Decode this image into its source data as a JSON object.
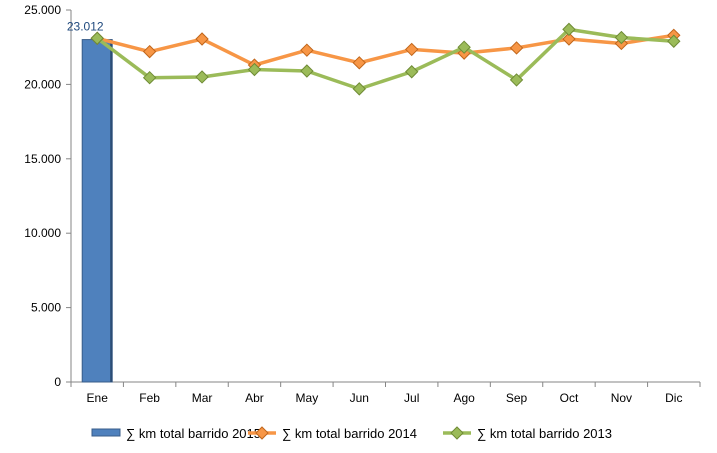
{
  "chart_data": {
    "type": "bar",
    "categories": [
      "Ene",
      "Feb",
      "Mar",
      "Abr",
      "May",
      "Jun",
      "Jul",
      "Ago",
      "Sep",
      "Oct",
      "Nov",
      "Dic"
    ],
    "ylim": [
      0,
      25000
    ],
    "ytick_values": [
      0,
      5000,
      10000,
      15000,
      20000,
      25000
    ],
    "ytick_labels": [
      "0",
      "5.000",
      "10.000",
      "15.000",
      "20.000",
      "25.000"
    ],
    "grid": false,
    "legend_position": "bottom",
    "series": [
      {
        "name": "∑ km total barrido 2015",
        "type": "bar",
        "color": "#4f81bd",
        "values": [
          23012,
          null,
          null,
          null,
          null,
          null,
          null,
          null,
          null,
          null,
          null,
          null
        ],
        "data_labels": [
          "23.012",
          null,
          null,
          null,
          null,
          null,
          null,
          null,
          null,
          null,
          null,
          null
        ]
      },
      {
        "name": "∑ km total barrido 2014",
        "type": "line",
        "color": "#f79646",
        "marker": "diamond",
        "values": [
          23100,
          22200,
          23050,
          21300,
          22300,
          21450,
          22350,
          22100,
          22450,
          23050,
          22750,
          23300
        ]
      },
      {
        "name": "∑ km total barrido 2013",
        "type": "line",
        "color": "#9bbb59",
        "marker": "diamond",
        "values": [
          23100,
          20450,
          20500,
          21000,
          20900,
          19700,
          20850,
          22500,
          20300,
          23700,
          23150,
          22900
        ]
      }
    ]
  }
}
